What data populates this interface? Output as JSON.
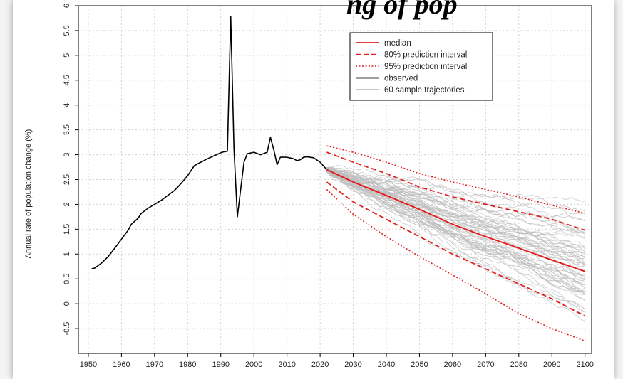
{
  "chart_data": {
    "type": "line",
    "title": "ng of pop",
    "xlabel": "",
    "ylabel": "Annual rate of population change (%)",
    "xlim": [
      1947,
      2102
    ],
    "ylim": [
      -1.0,
      6.0
    ],
    "x_ticks": [
      "1950",
      "1960",
      "1970",
      "1980",
      "1990",
      "2000",
      "2010",
      "2020",
      "2030",
      "2040",
      "2050",
      "2060",
      "2070",
      "2080",
      "2090",
      "2100"
    ],
    "y_ticks": [
      "-0.5",
      "0",
      "0.5",
      "1",
      "1.5",
      "2",
      "2.5",
      "3",
      "3.5",
      "4",
      "4.5",
      "5",
      "5.5",
      "6"
    ],
    "grid": true,
    "legend_position": "top-right",
    "colors": {
      "observed": "#000000",
      "median": "#e02020",
      "interval": "#e02020",
      "trajectory": "#bdbdbd",
      "grid": "#d0d0d0"
    },
    "legend": [
      {
        "label": "median",
        "style": "solid",
        "color": "#e02020"
      },
      {
        "label": "80% prediction interval",
        "style": "dashed",
        "color": "#e02020"
      },
      {
        "label": "95% prediction interval",
        "style": "dotted",
        "color": "#e02020"
      },
      {
        "label": "observed",
        "style": "solid",
        "color": "#000000"
      },
      {
        "label": "60 sample trajectories",
        "style": "solid",
        "color": "#bdbdbd"
      }
    ],
    "series": [
      {
        "name": "observed",
        "points": [
          [
            1951,
            0.7
          ],
          [
            1952,
            0.72
          ],
          [
            1954,
            0.82
          ],
          [
            1956,
            0.95
          ],
          [
            1958,
            1.12
          ],
          [
            1960,
            1.3
          ],
          [
            1962,
            1.48
          ],
          [
            1963,
            1.6
          ],
          [
            1965,
            1.72
          ],
          [
            1966,
            1.82
          ],
          [
            1968,
            1.92
          ],
          [
            1970,
            2.0
          ],
          [
            1972,
            2.08
          ],
          [
            1974,
            2.18
          ],
          [
            1976,
            2.28
          ],
          [
            1978,
            2.42
          ],
          [
            1980,
            2.58
          ],
          [
            1982,
            2.78
          ],
          [
            1984,
            2.85
          ],
          [
            1986,
            2.92
          ],
          [
            1988,
            2.98
          ],
          [
            1990,
            3.04
          ],
          [
            1991,
            3.06
          ],
          [
            1992,
            3.07
          ],
          [
            1993,
            5.78
          ],
          [
            1994,
            3.1
          ],
          [
            1995,
            1.75
          ],
          [
            1996,
            2.3
          ],
          [
            1997,
            2.85
          ],
          [
            1998,
            3.02
          ],
          [
            2000,
            3.05
          ],
          [
            2002,
            3.0
          ],
          [
            2004,
            3.05
          ],
          [
            2005,
            3.35
          ],
          [
            2006,
            3.1
          ],
          [
            2007,
            2.8
          ],
          [
            2008,
            2.95
          ],
          [
            2010,
            2.95
          ],
          [
            2012,
            2.92
          ],
          [
            2013,
            2.88
          ],
          [
            2014,
            2.9
          ],
          [
            2015,
            2.95
          ],
          [
            2016,
            2.96
          ],
          [
            2018,
            2.94
          ],
          [
            2020,
            2.85
          ],
          [
            2022,
            2.7
          ]
        ]
      },
      {
        "name": "median",
        "points": [
          [
            2022,
            2.7
          ],
          [
            2030,
            2.45
          ],
          [
            2040,
            2.18
          ],
          [
            2050,
            1.9
          ],
          [
            2060,
            1.6
          ],
          [
            2070,
            1.35
          ],
          [
            2080,
            1.12
          ],
          [
            2090,
            0.88
          ],
          [
            2100,
            0.65
          ]
        ]
      },
      {
        "name": "80% prediction interval",
        "points": [
          [
            2022,
            3.05
          ],
          [
            2030,
            2.85
          ],
          [
            2040,
            2.62
          ],
          [
            2050,
            2.35
          ],
          [
            2060,
            2.15
          ],
          [
            2070,
            2.0
          ],
          [
            2080,
            1.85
          ],
          [
            2090,
            1.7
          ],
          [
            2100,
            1.48
          ]
        ]
      },
      {
        "name": "80% prediction interval",
        "points": [
          [
            2022,
            2.45
          ],
          [
            2030,
            2.05
          ],
          [
            2040,
            1.7
          ],
          [
            2050,
            1.35
          ],
          [
            2060,
            1.0
          ],
          [
            2070,
            0.7
          ],
          [
            2080,
            0.4
          ],
          [
            2090,
            0.1
          ],
          [
            2100,
            -0.25
          ]
        ]
      },
      {
        "name": "95% prediction interval",
        "points": [
          [
            2022,
            3.18
          ],
          [
            2030,
            3.05
          ],
          [
            2040,
            2.85
          ],
          [
            2050,
            2.62
          ],
          [
            2060,
            2.45
          ],
          [
            2070,
            2.3
          ],
          [
            2080,
            2.15
          ],
          [
            2090,
            1.98
          ],
          [
            2100,
            1.82
          ]
        ]
      },
      {
        "name": "95% prediction interval",
        "points": [
          [
            2022,
            2.3
          ],
          [
            2030,
            1.8
          ],
          [
            2040,
            1.35
          ],
          [
            2050,
            0.95
          ],
          [
            2060,
            0.58
          ],
          [
            2070,
            0.2
          ],
          [
            2080,
            -0.2
          ],
          [
            2090,
            -0.5
          ],
          [
            2100,
            -0.75
          ]
        ]
      }
    ],
    "trajectories": {
      "label": "60 sample trajectories",
      "count": 60,
      "x_range": [
        2022,
        2100
      ],
      "start_value": 2.7
    }
  }
}
